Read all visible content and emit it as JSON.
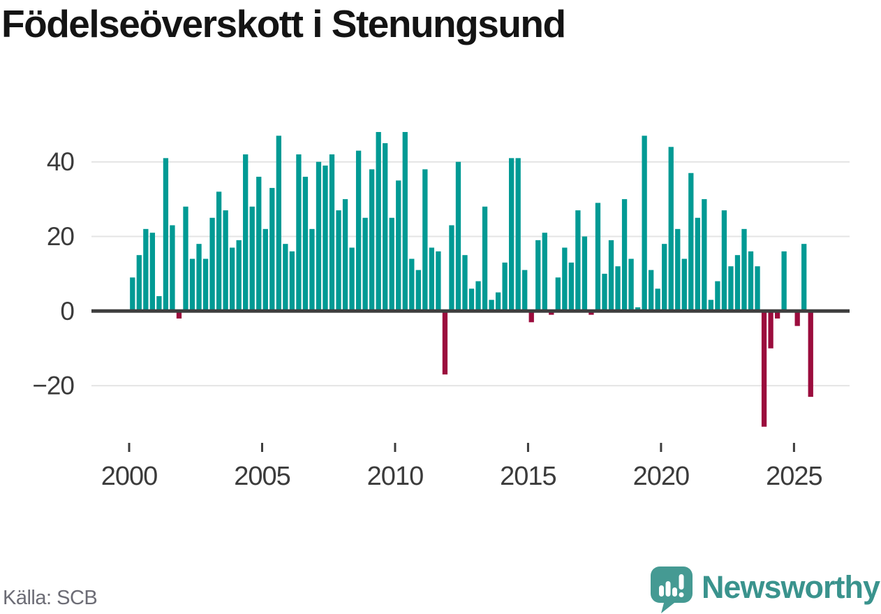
{
  "page": {
    "title": "Födelseöverskott i Stenungsund",
    "source_label": "Källa: SCB"
  },
  "branding": {
    "logo_text": "Newsworthy"
  },
  "chart_data": {
    "type": "bar",
    "title": "Födelseöverskott i Stenungsund",
    "period": "quarterly",
    "start": "2000-Q1",
    "end": "2025-Q3",
    "xlabel": "",
    "ylabel": "",
    "grid": "horizontal",
    "legend": "none",
    "ylim": [
      -33,
      50
    ],
    "y_ticks": [
      40,
      20,
      0,
      -20
    ],
    "y_tick_labels": [
      "40",
      "20",
      "0",
      "−20"
    ],
    "x_tick_years": [
      2000,
      2005,
      2010,
      2015,
      2020,
      2025
    ],
    "x_tick_labels": [
      "2000",
      "2005",
      "2010",
      "2015",
      "2020",
      "2025"
    ],
    "colors": {
      "positive": "#009a94",
      "negative": "#9b0c3d",
      "gridline": "#e4e4e4",
      "baseline": "#3e3e3e",
      "axis_text": "#3b3b3b",
      "logo_teal": "#459a93",
      "logo_text_teal": "#3a938d"
    },
    "series": [
      {
        "name": "Födelseöverskott",
        "values": [
          9,
          15,
          22,
          21,
          4,
          41,
          23,
          -2,
          28,
          14,
          18,
          14,
          25,
          32,
          27,
          17,
          19,
          42,
          28,
          36,
          22,
          33,
          47,
          18,
          16,
          42,
          36,
          22,
          40,
          39,
          42,
          27,
          30,
          17,
          43,
          25,
          38,
          48,
          45,
          25,
          35,
          48,
          14,
          11,
          38,
          17,
          16,
          -17,
          23,
          40,
          15,
          6,
          8,
          28,
          3,
          5,
          13,
          41,
          41,
          11,
          -3,
          19,
          21,
          -1,
          9,
          17,
          13,
          27,
          20,
          -1,
          29,
          10,
          19,
          12,
          30,
          14,
          1,
          47,
          11,
          6,
          18,
          44,
          22,
          14,
          37,
          25,
          30,
          3,
          8,
          27,
          12,
          15,
          22,
          16,
          12,
          -31,
          -10,
          -2,
          16,
          0,
          -4,
          18,
          -23
        ]
      }
    ]
  }
}
